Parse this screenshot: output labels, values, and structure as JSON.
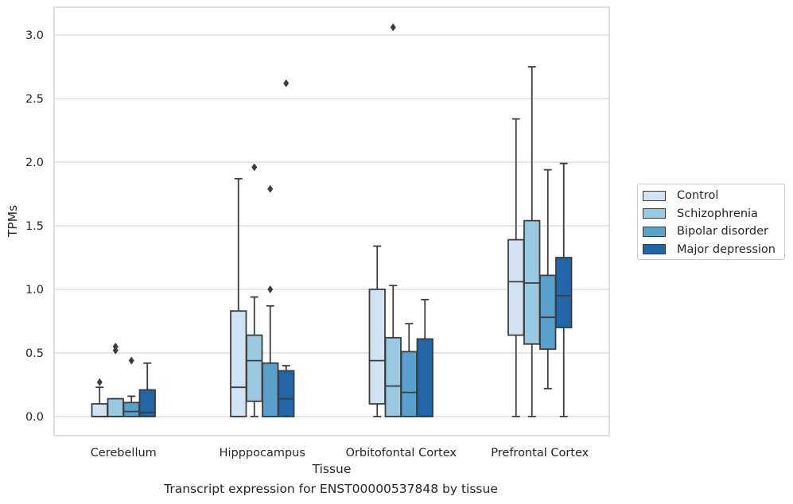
{
  "chart_data": {
    "type": "box",
    "title": "",
    "xlabel": "Tissue",
    "ylabel": "TPMs",
    "caption": "Transcript expression for ENST00000537848 by tissue",
    "ylim": [
      -0.15,
      3.22
    ],
    "yticks": [
      0.0,
      0.5,
      1.0,
      1.5,
      2.0,
      2.5,
      3.0
    ],
    "ytick_labels": [
      "0.0",
      "0.5",
      "1.0",
      "1.5",
      "2.0",
      "2.5",
      "3.0"
    ],
    "grid": true,
    "legend_position": "right",
    "categories": [
      "Cerebellum",
      "Hipppocampus",
      "Orbitofontal Cortex",
      "Prefrontal Cortex"
    ],
    "series": [
      {
        "name": "Control",
        "color": "#d1e2f2",
        "boxes": [
          {
            "min": 0.0,
            "q1": 0.0,
            "median": 0.0,
            "q3": 0.1,
            "max": 0.23,
            "outliers": [
              0.27
            ]
          },
          {
            "min": 0.0,
            "q1": 0.0,
            "median": 0.23,
            "q3": 0.83,
            "max": 1.87,
            "outliers": []
          },
          {
            "min": 0.0,
            "q1": 0.1,
            "median": 0.44,
            "q3": 1.0,
            "max": 1.34,
            "outliers": []
          },
          {
            "min": 0.0,
            "q1": 0.64,
            "median": 1.06,
            "q3": 1.39,
            "max": 2.34,
            "outliers": []
          }
        ]
      },
      {
        "name": "Schizophrenia",
        "color": "#9ac8e0",
        "boxes": [
          {
            "min": 0.0,
            "q1": 0.0,
            "median": 0.0,
            "q3": 0.14,
            "max": 0.14,
            "outliers": [
              0.52,
              0.55
            ]
          },
          {
            "min": 0.0,
            "q1": 0.12,
            "median": 0.44,
            "q3": 0.64,
            "max": 0.94,
            "outliers": [
              1.96
            ]
          },
          {
            "min": 0.0,
            "q1": 0.0,
            "median": 0.24,
            "q3": 0.62,
            "max": 1.03,
            "outliers": [
              3.06
            ]
          },
          {
            "min": 0.0,
            "q1": 0.57,
            "median": 1.05,
            "q3": 1.54,
            "max": 2.75,
            "outliers": []
          }
        ]
      },
      {
        "name": "Bipolar disorder",
        "color": "#5aa0cd",
        "boxes": [
          {
            "min": 0.0,
            "q1": 0.0,
            "median": 0.04,
            "q3": 0.11,
            "max": 0.16,
            "outliers": [
              0.44
            ]
          },
          {
            "min": 0.0,
            "q1": 0.0,
            "median": 0.0,
            "q3": 0.42,
            "max": 0.87,
            "outliers": [
              1.79,
              1.0
            ]
          },
          {
            "min": 0.0,
            "q1": 0.0,
            "median": 0.19,
            "q3": 0.51,
            "max": 0.73,
            "outliers": []
          },
          {
            "min": 0.22,
            "q1": 0.53,
            "median": 0.78,
            "q3": 1.11,
            "max": 1.94,
            "outliers": []
          }
        ]
      },
      {
        "name": "Major depression",
        "color": "#2366a8",
        "boxes": [
          {
            "min": 0.0,
            "q1": 0.0,
            "median": 0.03,
            "q3": 0.21,
            "max": 0.42,
            "outliers": []
          },
          {
            "min": 0.0,
            "q1": 0.0,
            "median": 0.14,
            "q3": 0.36,
            "max": 0.4,
            "outliers": [
              2.62
            ]
          },
          {
            "min": 0.0,
            "q1": 0.0,
            "median": 0.0,
            "q3": 0.61,
            "max": 0.92,
            "outliers": []
          },
          {
            "min": 0.0,
            "q1": 0.7,
            "median": 0.95,
            "q3": 1.25,
            "max": 1.99,
            "outliers": []
          }
        ]
      }
    ]
  }
}
